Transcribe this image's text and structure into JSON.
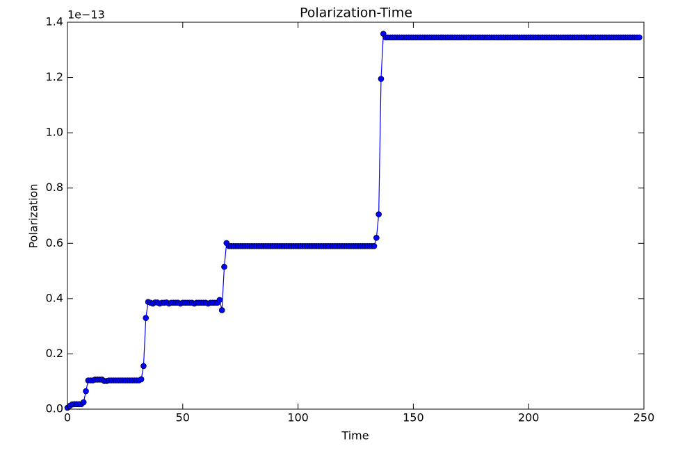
{
  "chart_data": {
    "type": "line",
    "title": "Polarization-Time",
    "x_label": "Time",
    "y_label": "Polarization",
    "y_offset_label": "1e−13",
    "color": "#0000ff",
    "marker_edge_color": "#000000",
    "x": [
      0,
      1,
      2,
      3,
      4,
      5,
      6,
      7,
      8,
      9,
      10,
      11,
      12,
      13,
      14,
      15,
      16,
      17,
      18,
      19,
      20,
      21,
      22,
      23,
      24,
      25,
      26,
      27,
      28,
      29,
      30,
      31,
      32,
      33,
      34,
      35,
      36,
      37,
      38,
      39,
      40,
      41,
      42,
      43,
      44,
      45,
      46,
      47,
      48,
      49,
      50,
      51,
      52,
      53,
      54,
      55,
      56,
      57,
      58,
      59,
      60,
      61,
      62,
      63,
      64,
      65,
      66,
      67,
      68,
      69,
      70,
      71,
      72,
      73,
      74,
      75,
      76,
      77,
      78,
      79,
      80,
      81,
      82,
      83,
      84,
      85,
      86,
      87,
      88,
      89,
      90,
      91,
      92,
      93,
      94,
      95,
      96,
      97,
      98,
      99,
      100,
      101,
      102,
      103,
      104,
      105,
      106,
      107,
      108,
      109,
      110,
      111,
      112,
      113,
      114,
      115,
      116,
      117,
      118,
      119,
      120,
      121,
      122,
      123,
      124,
      125,
      126,
      127,
      128,
      129,
      130,
      131,
      132,
      133,
      134,
      135,
      136,
      137,
      138,
      139,
      140,
      141,
      142,
      143,
      144,
      145,
      146,
      147,
      148,
      149,
      150,
      151,
      152,
      153,
      154,
      155,
      156,
      157,
      158,
      159,
      160,
      161,
      162,
      163,
      164,
      165,
      166,
      167,
      168,
      169,
      170,
      171,
      172,
      173,
      174,
      175,
      176,
      177,
      178,
      179,
      180,
      181,
      182,
      183,
      184,
      185,
      186,
      187,
      188,
      189,
      190,
      191,
      192,
      193,
      194,
      195,
      196,
      197,
      198,
      199,
      200,
      201,
      202,
      203,
      204,
      205,
      206,
      207,
      208,
      209,
      210,
      211,
      212,
      213,
      214,
      215,
      216,
      217,
      218,
      219,
      220,
      221,
      222,
      223,
      224,
      225,
      226,
      227,
      228,
      229,
      230,
      231,
      232,
      233,
      234,
      235,
      236,
      237,
      238,
      239,
      240,
      241,
      242,
      243,
      244,
      245,
      246,
      247,
      248
    ],
    "values": [
      0.005,
      0.012,
      0.017,
      0.018,
      0.018,
      0.018,
      0.018,
      0.025,
      0.065,
      0.104,
      0.104,
      0.104,
      0.107,
      0.107,
      0.107,
      0.107,
      0.102,
      0.102,
      0.104,
      0.104,
      0.104,
      0.104,
      0.104,
      0.104,
      0.104,
      0.104,
      0.104,
      0.104,
      0.104,
      0.104,
      0.104,
      0.104,
      0.108,
      0.156,
      0.33,
      0.388,
      0.385,
      0.382,
      0.386,
      0.386,
      0.382,
      0.385,
      0.385,
      0.386,
      0.382,
      0.385,
      0.385,
      0.385,
      0.385,
      0.382,
      0.385,
      0.385,
      0.385,
      0.385,
      0.385,
      0.382,
      0.385,
      0.385,
      0.385,
      0.385,
      0.385,
      0.382,
      0.385,
      0.385,
      0.385,
      0.385,
      0.395,
      0.358,
      0.515,
      0.601,
      0.59,
      0.59,
      0.59,
      0.59,
      0.59,
      0.59,
      0.59,
      0.59,
      0.59,
      0.59,
      0.59,
      0.59,
      0.59,
      0.59,
      0.59,
      0.59,
      0.59,
      0.59,
      0.59,
      0.59,
      0.59,
      0.59,
      0.59,
      0.59,
      0.59,
      0.59,
      0.59,
      0.59,
      0.59,
      0.59,
      0.59,
      0.59,
      0.59,
      0.59,
      0.59,
      0.59,
      0.59,
      0.59,
      0.59,
      0.59,
      0.59,
      0.59,
      0.59,
      0.59,
      0.59,
      0.59,
      0.59,
      0.59,
      0.59,
      0.59,
      0.59,
      0.59,
      0.59,
      0.59,
      0.59,
      0.59,
      0.59,
      0.59,
      0.59,
      0.59,
      0.59,
      0.59,
      0.59,
      0.59,
      0.62,
      0.705,
      1.195,
      1.358,
      1.345,
      1.345,
      1.345,
      1.345,
      1.345,
      1.345,
      1.345,
      1.345,
      1.345,
      1.345,
      1.345,
      1.345,
      1.345,
      1.345,
      1.345,
      1.345,
      1.345,
      1.345,
      1.345,
      1.345,
      1.345,
      1.345,
      1.345,
      1.345,
      1.345,
      1.345,
      1.345,
      1.345,
      1.345,
      1.345,
      1.345,
      1.345,
      1.345,
      1.345,
      1.345,
      1.345,
      1.345,
      1.345,
      1.345,
      1.345,
      1.345,
      1.345,
      1.345,
      1.345,
      1.345,
      1.345,
      1.345,
      1.345,
      1.345,
      1.345,
      1.345,
      1.345,
      1.345,
      1.345,
      1.345,
      1.345,
      1.345,
      1.345,
      1.345,
      1.345,
      1.345,
      1.345,
      1.345,
      1.345,
      1.345,
      1.345,
      1.345,
      1.345,
      1.345,
      1.345,
      1.345,
      1.345,
      1.345,
      1.345,
      1.345,
      1.345,
      1.345,
      1.345,
      1.345,
      1.345,
      1.345,
      1.345,
      1.345,
      1.345,
      1.345,
      1.345,
      1.345,
      1.345,
      1.345,
      1.345,
      1.345,
      1.345,
      1.345,
      1.345,
      1.345,
      1.345,
      1.345,
      1.345,
      1.345,
      1.345,
      1.345,
      1.345,
      1.345,
      1.345,
      1.345,
      1.345,
      1.345,
      1.345,
      1.345,
      1.345,
      1.345
    ],
    "xlim": [
      0,
      250
    ],
    "xticks": [
      0,
      50,
      100,
      150,
      200,
      250
    ],
    "ylim": [
      0,
      1.4
    ],
    "yticks": [
      {
        "value": 0,
        "label": "0.0"
      },
      0.2,
      0.4,
      0.6,
      0.8,
      {
        "value": 1,
        "label": "1.0"
      },
      1.2,
      1.4
    ],
    "grid": false
  }
}
